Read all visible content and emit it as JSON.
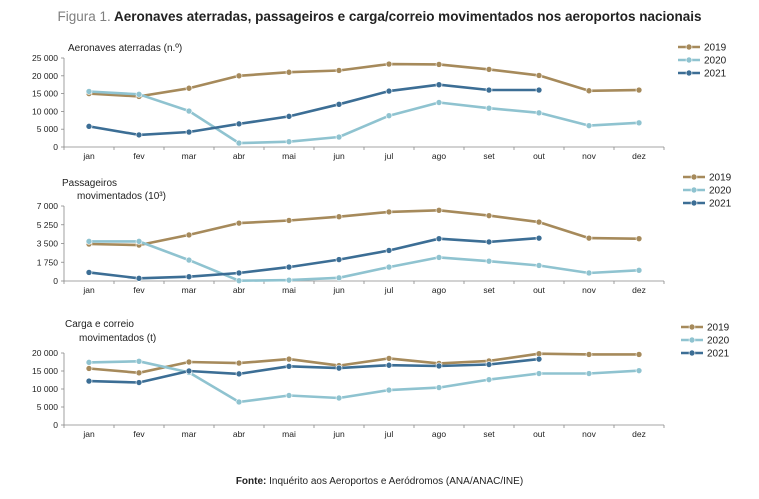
{
  "figure": {
    "title_label": "Figura 1.",
    "title_text": " Aeronaves aterradas, passageiros e carga/correio movimentados nos aeroportos nacionais",
    "source_label": "Fonte:",
    "source_text": " Inquérito aos Aeroportos e Aeródromos (ANA/ANAC/INE)"
  },
  "colors": {
    "2019": "#a68a5b",
    "2020": "#8fc3d0",
    "2021": "#3c6e95"
  },
  "chart_data": [
    {
      "type": "line",
      "title_lines": [
        "Aeronaves aterradas (n.º)"
      ],
      "categories": [
        "jan",
        "fev",
        "mar",
        "abr",
        "mai",
        "jun",
        "jul",
        "ago",
        "set",
        "out",
        "nov",
        "dez"
      ],
      "ylim": [
        0,
        25000
      ],
      "yticks": [
        0,
        5000,
        10000,
        15000,
        20000,
        25000
      ],
      "ytick_labels": [
        "0",
        "5 000",
        "10 000",
        "15 000",
        "20 000",
        "25 000"
      ],
      "legend_position": "top-right",
      "series": [
        {
          "name": "2019",
          "values": [
            15000,
            14200,
            16500,
            20000,
            21000,
            21500,
            23300,
            23200,
            21800,
            20100,
            15800,
            16000
          ]
        },
        {
          "name": "2020",
          "values": [
            15600,
            14800,
            10100,
            1100,
            1500,
            2800,
            8800,
            12500,
            10900,
            9600,
            6000,
            6800
          ]
        },
        {
          "name": "2021",
          "values": [
            5800,
            3400,
            4200,
            6500,
            8600,
            12000,
            15700,
            17500,
            16000,
            16000,
            null,
            null
          ]
        }
      ]
    },
    {
      "type": "line",
      "title_lines": [
        "Passageiros",
        "movimentados (10³)"
      ],
      "categories": [
        "jan",
        "fev",
        "mar",
        "abr",
        "mai",
        "jun",
        "jul",
        "ago",
        "set",
        "out",
        "nov",
        "dez"
      ],
      "ylim": [
        0,
        7000
      ],
      "yticks": [
        0,
        1750,
        3500,
        5250,
        7000
      ],
      "ytick_labels": [
        "0",
        "1 750",
        "3 500",
        "5 250",
        "7 000"
      ],
      "legend_position": "top-right",
      "series": [
        {
          "name": "2019",
          "values": [
            3450,
            3350,
            4300,
            5400,
            5650,
            6000,
            6450,
            6600,
            6100,
            5500,
            4000,
            3950
          ]
        },
        {
          "name": "2020",
          "values": [
            3700,
            3700,
            1950,
            30,
            80,
            300,
            1300,
            2200,
            1850,
            1450,
            750,
            1000
          ]
        },
        {
          "name": "2021",
          "values": [
            800,
            250,
            400,
            750,
            1300,
            2000,
            2850,
            3950,
            3650,
            4000,
            null,
            null
          ]
        }
      ]
    },
    {
      "type": "line",
      "title_lines": [
        "Carga e correio",
        "movimentados (t)"
      ],
      "categories": [
        "jan",
        "fev",
        "mar",
        "abr",
        "mai",
        "jun",
        "jul",
        "ago",
        "set",
        "out",
        "nov",
        "dez"
      ],
      "ylim": [
        0,
        20000
      ],
      "yticks": [
        0,
        5000,
        10000,
        15000,
        20000
      ],
      "ytick_labels": [
        "0",
        "5 000",
        "10 000",
        "15 000",
        "20 000"
      ],
      "legend_position": "top-right",
      "series": [
        {
          "name": "2019",
          "values": [
            15700,
            14500,
            17500,
            17200,
            18300,
            16500,
            18500,
            17100,
            17800,
            19800,
            19600,
            19600
          ]
        },
        {
          "name": "2020",
          "values": [
            17400,
            17700,
            14600,
            6400,
            8200,
            7500,
            9700,
            10400,
            12600,
            14300,
            14300,
            15100
          ]
        },
        {
          "name": "2021",
          "values": [
            12200,
            11800,
            15000,
            14200,
            16300,
            15800,
            16600,
            16400,
            16800,
            18300,
            null,
            null
          ]
        }
      ]
    }
  ]
}
